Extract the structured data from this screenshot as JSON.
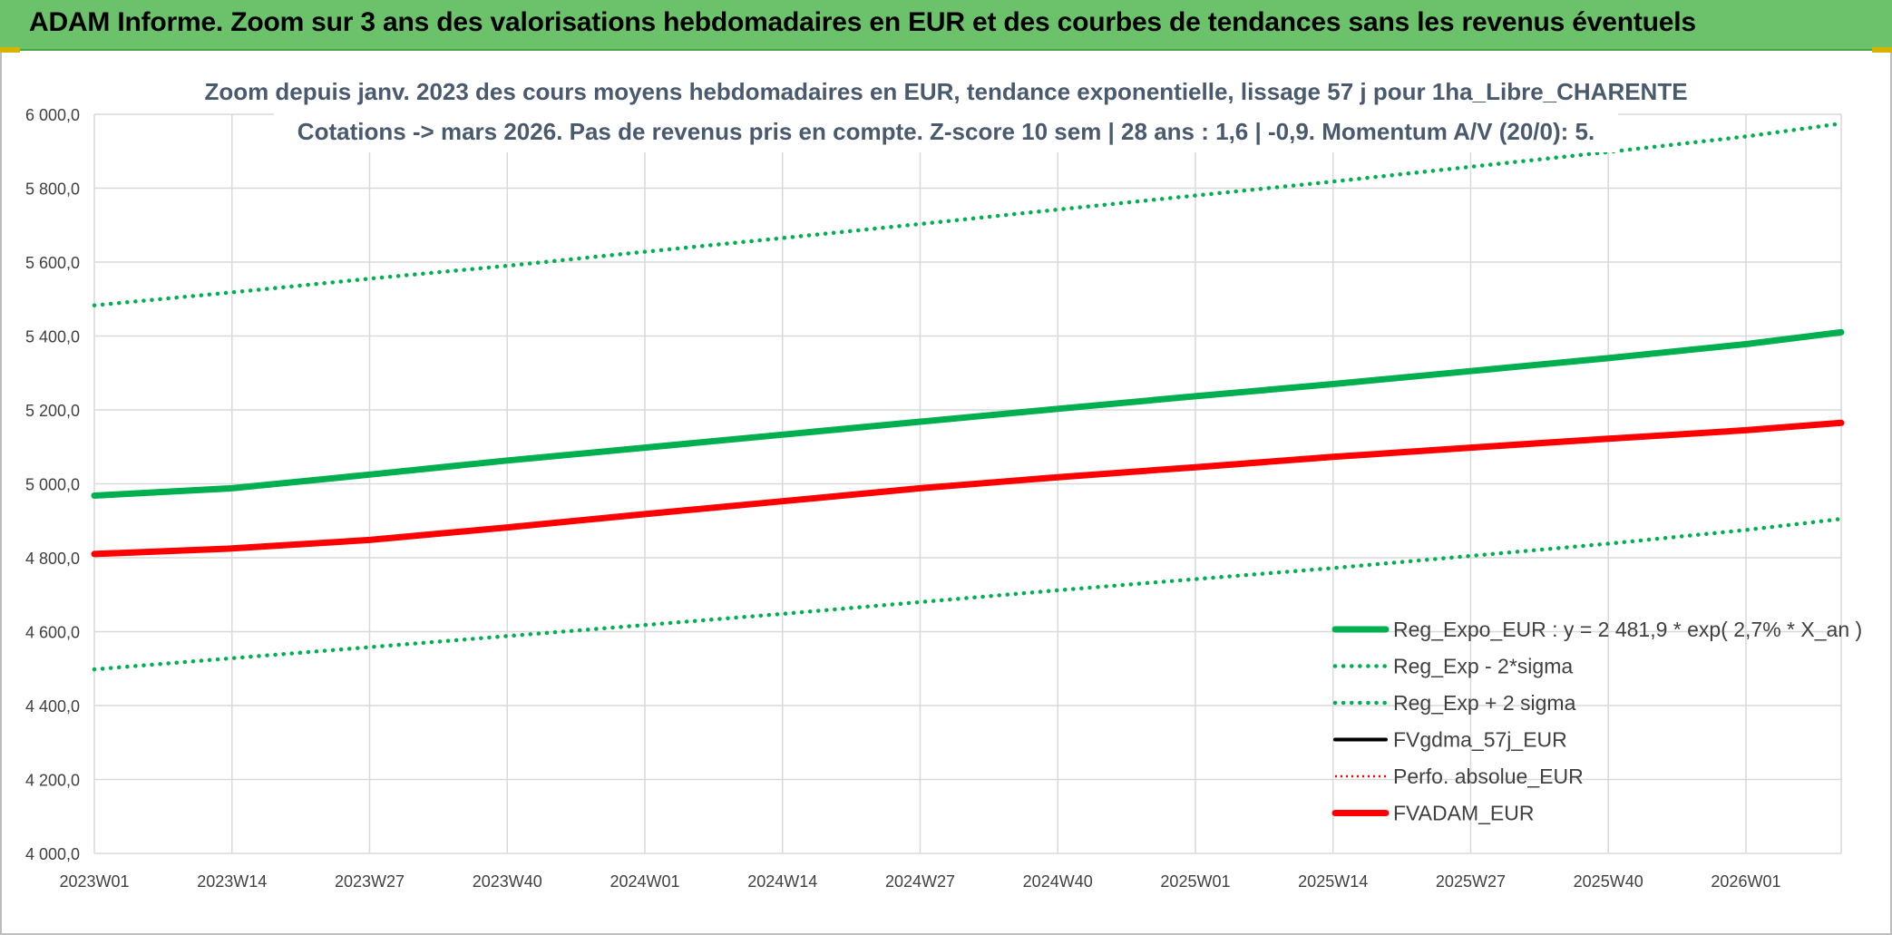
{
  "banner": {
    "title": "ADAM Informe. Zoom sur 3 ans des valorisations hebdomadaires en EUR et des courbes de tendances sans les revenus éventuels"
  },
  "colors": {
    "banner_bg": "#6cc26a",
    "reg_expo": "#00b050",
    "fvgdma": "#000000",
    "perfo": "#ff0000",
    "fvadam": "#ff0000",
    "grid": "#d9d9d9"
  },
  "chart_data": {
    "type": "line",
    "title": "Zoom depuis janv. 2023 des cours moyens hebdomadaires en EUR, tendance exponentielle, lissage 57 j pour 1ha_Libre_CHARENTE",
    "subtitle": "Cotations -> mars 2026. Pas de revenus pris en compte. Z-score 10 sem | 28 ans : 1,6 | -0,9. Momentum A/V (20/0): 5.",
    "x_tick_labels": [
      "2023W01",
      "2023W14",
      "2023W27",
      "2023W40",
      "2024W01",
      "2024W14",
      "2024W27",
      "2024W40",
      "2025W01",
      "2025W14",
      "2025W27",
      "2025W40",
      "2026W01"
    ],
    "y_tick_labels": [
      "6 000,0",
      "5 800,0",
      "5 600,0",
      "5 400,0",
      "5 200,0",
      "5 000,0",
      "4 800,0",
      "4 600,0",
      "4 400,0",
      "4 200,0",
      "4 000,0"
    ],
    "ylim": [
      4000,
      6000
    ],
    "x_range_weeks": [
      0,
      165
    ],
    "grid": true,
    "legend_position": "bottom-right",
    "series": [
      {
        "name": "Reg_Expo_EUR : y = 2 481,9 * exp( 2,7% *  X_an )",
        "style": "solid-thick",
        "color": "#00b050",
        "points": [
          [
            0,
            4968
          ],
          [
            13,
            4988
          ],
          [
            26,
            5025
          ],
          [
            39,
            5063
          ],
          [
            52,
            5098
          ],
          [
            65,
            5133
          ],
          [
            78,
            5168
          ],
          [
            91,
            5203
          ],
          [
            104,
            5237
          ],
          [
            117,
            5270
          ],
          [
            130,
            5305
          ],
          [
            143,
            5340
          ],
          [
            156,
            5378
          ],
          [
            165,
            5410
          ]
        ]
      },
      {
        "name": "Reg_Exp - 2*sigma",
        "style": "dotted",
        "color": "#00b050",
        "points": [
          [
            0,
            4498
          ],
          [
            13,
            4528
          ],
          [
            26,
            4558
          ],
          [
            39,
            4588
          ],
          [
            52,
            4618
          ],
          [
            65,
            4648
          ],
          [
            78,
            4680
          ],
          [
            91,
            4712
          ],
          [
            104,
            4742
          ],
          [
            117,
            4772
          ],
          [
            130,
            4805
          ],
          [
            143,
            4838
          ],
          [
            156,
            4875
          ],
          [
            165,
            4905
          ]
        ]
      },
      {
        "name": "Reg_Exp + 2 sigma",
        "style": "dotted",
        "color": "#00b050",
        "points": [
          [
            0,
            5483
          ],
          [
            13,
            5518
          ],
          [
            26,
            5555
          ],
          [
            39,
            5590
          ],
          [
            52,
            5628
          ],
          [
            65,
            5665
          ],
          [
            78,
            5703
          ],
          [
            91,
            5742
          ],
          [
            104,
            5780
          ],
          [
            117,
            5818
          ],
          [
            130,
            5858
          ],
          [
            143,
            5898
          ],
          [
            156,
            5940
          ],
          [
            165,
            5975
          ]
        ]
      },
      {
        "name": "FVgdma_57j_EUR",
        "style": "solid",
        "color": "#000000",
        "points": [
          [
            0,
            4810
          ],
          [
            13,
            4825
          ],
          [
            26,
            4850
          ],
          [
            39,
            4882
          ],
          [
            52,
            4918
          ],
          [
            65,
            4953
          ],
          [
            78,
            4988
          ],
          [
            91,
            5018
          ],
          [
            104,
            5045
          ],
          [
            117,
            5073
          ],
          [
            130,
            5098
          ],
          [
            143,
            5122
          ],
          [
            156,
            5143
          ],
          [
            165,
            5162
          ]
        ]
      },
      {
        "name": "Perfo. absolue_EUR",
        "style": "dotted-thin",
        "color": "#ff0000",
        "points": [
          [
            0,
            4810
          ],
          [
            13,
            4825
          ],
          [
            26,
            4848
          ],
          [
            39,
            4882
          ],
          [
            52,
            4918
          ],
          [
            65,
            4953
          ],
          [
            78,
            4988
          ],
          [
            91,
            5018
          ],
          [
            104,
            5045
          ],
          [
            117,
            5073
          ],
          [
            130,
            5098
          ],
          [
            143,
            5122
          ],
          [
            156,
            5145
          ],
          [
            165,
            5165
          ]
        ]
      },
      {
        "name": "FVADAM_EUR",
        "style": "solid-thick",
        "color": "#ff0000",
        "points": [
          [
            0,
            4810
          ],
          [
            13,
            4825
          ],
          [
            26,
            4848
          ],
          [
            39,
            4882
          ],
          [
            52,
            4918
          ],
          [
            65,
            4953
          ],
          [
            78,
            4988
          ],
          [
            91,
            5018
          ],
          [
            104,
            5045
          ],
          [
            117,
            5073
          ],
          [
            130,
            5098
          ],
          [
            143,
            5122
          ],
          [
            156,
            5145
          ],
          [
            165,
            5165
          ]
        ]
      }
    ]
  }
}
